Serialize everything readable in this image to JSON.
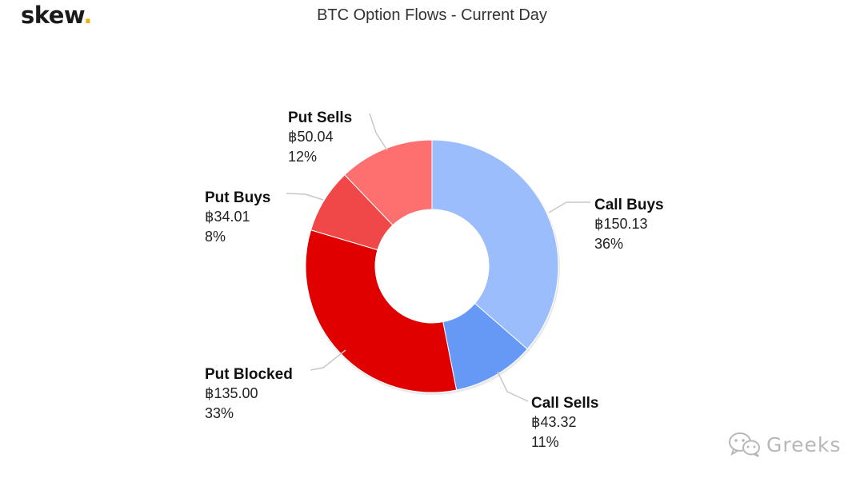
{
  "brand": {
    "logo_text": "skew",
    "logo_dot": ".",
    "logo_dot_color": "#e8b400"
  },
  "watermark": {
    "text": "Greeks",
    "icon": "wechat-icon"
  },
  "chart_data": {
    "type": "pie",
    "variant": "donut",
    "title": "BTC Option Flows - Current Day",
    "currency_symbol": "฿",
    "legend": "none",
    "slices": [
      {
        "label": "Call Buys",
        "value": 150.13,
        "value_text": "฿150.13",
        "percent_text": "36%",
        "color": "#9bbdfb"
      },
      {
        "label": "Call Sells",
        "value": 43.32,
        "value_text": "฿43.32",
        "percent_text": "11%",
        "color": "#6699f5"
      },
      {
        "label": "Put Blocked",
        "value": 135.0,
        "value_text": "฿135.00",
        "percent_text": "33%",
        "color": "#e00000"
      },
      {
        "label": "Put Buys",
        "value": 34.01,
        "value_text": "฿34.01",
        "percent_text": "8%",
        "color": "#f04848"
      },
      {
        "label": "Put Sells",
        "value": 50.04,
        "value_text": "฿50.04",
        "percent_text": "12%",
        "color": "#fe7070"
      }
    ]
  }
}
